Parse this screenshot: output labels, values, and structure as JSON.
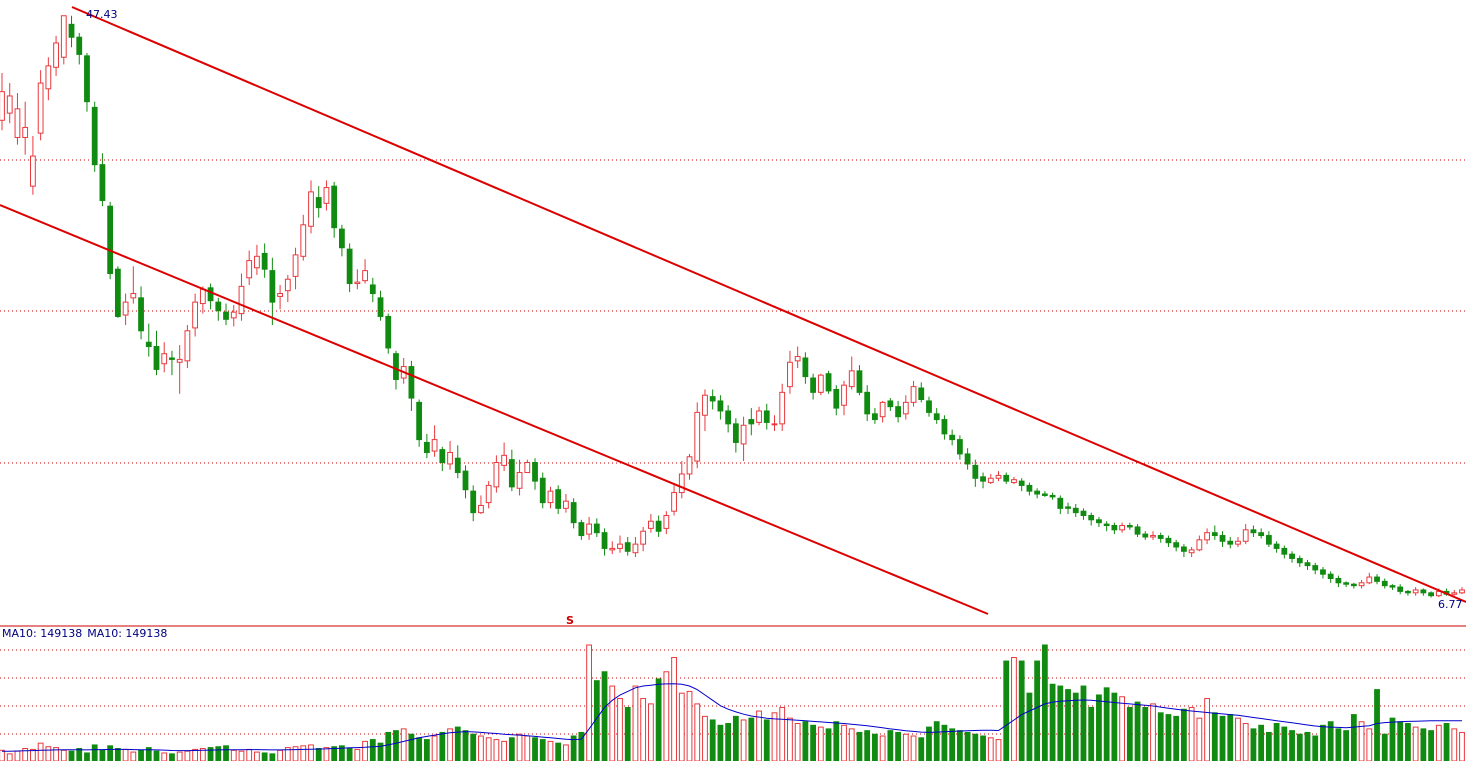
{
  "chart_data": {
    "type": "candlestick",
    "title": "",
    "high_label": "47.43",
    "low_label": "6.77",
    "marker_label": "S",
    "price_range": [
      5.9,
      48.5
    ],
    "volume_legend": {
      "ma10_a": "MA10: 149138",
      "ma10_b": "MA10: 149138"
    },
    "colors": {
      "up": "#e8393d",
      "down": "#108a10",
      "trendline": "#dd0000",
      "ma_line": "#0000cc",
      "grid": "#cc0000",
      "label": "#000080"
    },
    "candles": [
      [
        40.1,
        42.1,
        43.4,
        39.4
      ],
      [
        40.6,
        41.8,
        42.7,
        39.9
      ],
      [
        38.9,
        40.9,
        42.0,
        38.4
      ],
      [
        38.9,
        39.6,
        41.4,
        37.7
      ],
      [
        35.5,
        37.6,
        39.0,
        34.9
      ],
      [
        39.2,
        42.7,
        43.6,
        38.7
      ],
      [
        42.3,
        43.9,
        44.5,
        41.5
      ],
      [
        43.8,
        45.5,
        46.0,
        43.2
      ],
      [
        44.5,
        47.4,
        47.4,
        44.0
      ],
      [
        46.8,
        45.9,
        47.4,
        45.2
      ],
      [
        45.9,
        44.7,
        46.2,
        44.0
      ],
      [
        44.6,
        41.4,
        44.8,
        40.7
      ],
      [
        41.0,
        37.0,
        41.4,
        36.5
      ],
      [
        37.0,
        34.5,
        37.8,
        34.1
      ],
      [
        34.1,
        29.4,
        34.4,
        29.0
      ],
      [
        29.7,
        26.4,
        29.9,
        26.3
      ],
      [
        26.5,
        27.4,
        28.0,
        25.8
      ],
      [
        27.7,
        28.0,
        29.9,
        27.3
      ],
      [
        27.7,
        25.4,
        28.5,
        24.8
      ],
      [
        24.6,
        24.3,
        25.9,
        23.6
      ],
      [
        24.3,
        22.7,
        25.4,
        22.3
      ],
      [
        23.1,
        23.8,
        24.6,
        22.5
      ],
      [
        23.5,
        23.4,
        24.0,
        22.3
      ],
      [
        23.2,
        23.4,
        24.4,
        21.0
      ],
      [
        23.3,
        25.4,
        25.8,
        22.8
      ],
      [
        25.6,
        27.4,
        28.0,
        25.0
      ],
      [
        27.3,
        28.3,
        28.5,
        26.6
      ],
      [
        28.4,
        27.5,
        28.7,
        26.9
      ],
      [
        27.4,
        26.8,
        27.7,
        26.1
      ],
      [
        26.7,
        26.2,
        27.3,
        25.8
      ],
      [
        26.3,
        26.7,
        27.2,
        25.7
      ],
      [
        26.6,
        28.5,
        29.4,
        26.1
      ],
      [
        29.1,
        30.3,
        31.0,
        28.6
      ],
      [
        29.8,
        30.6,
        31.4,
        29.3
      ],
      [
        30.8,
        29.7,
        31.5,
        29.1
      ],
      [
        29.6,
        27.4,
        30.5,
        25.8
      ],
      [
        27.8,
        28.0,
        28.6,
        26.9
      ],
      [
        28.2,
        29.0,
        29.3,
        27.4
      ],
      [
        29.2,
        30.7,
        31.2,
        28.3
      ],
      [
        30.6,
        32.8,
        33.5,
        30.3
      ],
      [
        32.7,
        35.1,
        35.9,
        32.2
      ],
      [
        34.7,
        34.0,
        35.5,
        33.3
      ],
      [
        34.3,
        35.4,
        35.9,
        33.8
      ],
      [
        35.5,
        32.6,
        35.8,
        31.9
      ],
      [
        32.5,
        31.2,
        32.8,
        30.6
      ],
      [
        31.1,
        28.7,
        31.5,
        28.1
      ],
      [
        28.7,
        28.8,
        29.7,
        28.3
      ],
      [
        28.9,
        29.6,
        30.4,
        28.7
      ],
      [
        28.6,
        28.0,
        29.1,
        27.4
      ],
      [
        27.7,
        26.4,
        28.2,
        26.1
      ],
      [
        26.4,
        24.2,
        26.6,
        23.8
      ],
      [
        23.8,
        22.0,
        24.0,
        21.3
      ],
      [
        22.1,
        22.9,
        23.5,
        21.7
      ],
      [
        22.9,
        20.7,
        23.3,
        19.8
      ],
      [
        20.4,
        17.8,
        20.6,
        17.3
      ],
      [
        17.6,
        16.9,
        18.2,
        16.5
      ],
      [
        17.0,
        17.8,
        18.8,
        16.6
      ],
      [
        17.1,
        16.2,
        17.3,
        15.6
      ],
      [
        16.1,
        16.9,
        17.7,
        15.7
      ],
      [
        16.5,
        15.5,
        17.4,
        15.1
      ],
      [
        15.6,
        14.3,
        16.0,
        13.7
      ],
      [
        14.2,
        12.7,
        14.6,
        12.1
      ],
      [
        12.7,
        13.2,
        13.9,
        12.6
      ],
      [
        13.4,
        14.6,
        14.9,
        13.0
      ],
      [
        14.5,
        16.2,
        16.7,
        14.1
      ],
      [
        16.0,
        16.7,
        17.6,
        15.6
      ],
      [
        16.4,
        14.5,
        17.1,
        14.2
      ],
      [
        14.4,
        15.5,
        16.4,
        13.9
      ],
      [
        15.5,
        16.2,
        16.4,
        15.9
      ],
      [
        16.2,
        14.9,
        16.5,
        14.3
      ],
      [
        15.1,
        13.4,
        15.5,
        13.0
      ],
      [
        13.4,
        14.2,
        14.5,
        13.0
      ],
      [
        14.3,
        13.0,
        14.6,
        12.6
      ],
      [
        13.0,
        13.5,
        14.0,
        12.7
      ],
      [
        13.4,
        12.0,
        13.7,
        11.6
      ],
      [
        12.0,
        11.1,
        12.2,
        10.8
      ],
      [
        11.2,
        11.9,
        12.4,
        10.8
      ],
      [
        11.9,
        11.3,
        12.3,
        11.0
      ],
      [
        11.3,
        10.2,
        11.6,
        9.7
      ],
      [
        10.1,
        10.2,
        10.7,
        9.8
      ],
      [
        10.2,
        10.5,
        11.1,
        9.9
      ],
      [
        10.6,
        10.0,
        11.0,
        9.7
      ],
      [
        9.9,
        10.5,
        11.0,
        9.6
      ],
      [
        10.5,
        11.4,
        11.7,
        10.0
      ],
      [
        11.6,
        12.1,
        12.6,
        11.3
      ],
      [
        12.1,
        11.4,
        12.5,
        11.0
      ],
      [
        11.6,
        12.5,
        12.8,
        11.2
      ],
      [
        12.8,
        14.1,
        14.6,
        12.5
      ],
      [
        14.1,
        15.4,
        16.3,
        13.7
      ],
      [
        15.4,
        16.6,
        16.8,
        15.0
      ],
      [
        16.3,
        19.7,
        20.4,
        15.8
      ],
      [
        19.5,
        20.9,
        21.3,
        18.4
      ],
      [
        20.8,
        20.5,
        21.3,
        19.9
      ],
      [
        20.5,
        19.8,
        20.9,
        19.2
      ],
      [
        19.8,
        18.9,
        20.2,
        18.3
      ],
      [
        18.9,
        17.6,
        19.3,
        16.9
      ],
      [
        17.5,
        18.8,
        19.4,
        16.3
      ],
      [
        19.2,
        18.9,
        20.0,
        18.1
      ],
      [
        19.0,
        19.8,
        20.1,
        18.8
      ],
      [
        19.8,
        19.0,
        20.3,
        18.5
      ],
      [
        18.9,
        18.9,
        19.5,
        18.4
      ],
      [
        18.9,
        21.1,
        21.7,
        18.4
      ],
      [
        21.5,
        23.2,
        24.0,
        21.0
      ],
      [
        23.3,
        23.6,
        24.3,
        22.8
      ],
      [
        23.5,
        22.2,
        23.9,
        21.7
      ],
      [
        22.1,
        21.1,
        22.4,
        20.6
      ],
      [
        21.1,
        22.3,
        22.4,
        20.9
      ],
      [
        22.4,
        21.2,
        22.6,
        21.0
      ],
      [
        21.3,
        20.0,
        21.6,
        19.5
      ],
      [
        20.2,
        21.6,
        21.9,
        19.5
      ],
      [
        21.5,
        22.6,
        23.6,
        21.3
      ],
      [
        22.6,
        21.1,
        23.0,
        20.9
      ],
      [
        21.1,
        19.6,
        21.6,
        19.1
      ],
      [
        19.6,
        19.2,
        20.0,
        18.9
      ],
      [
        19.4,
        20.4,
        20.5,
        19.0
      ],
      [
        20.5,
        20.1,
        20.7,
        19.8
      ],
      [
        20.1,
        19.4,
        20.5,
        19.0
      ],
      [
        19.6,
        20.4,
        20.9,
        19.2
      ],
      [
        20.4,
        21.5,
        21.9,
        20.1
      ],
      [
        21.4,
        20.6,
        21.8,
        20.4
      ],
      [
        20.5,
        19.7,
        20.8,
        19.4
      ],
      [
        19.6,
        19.2,
        20.0,
        18.9
      ],
      [
        19.2,
        18.2,
        19.5,
        17.8
      ],
      [
        18.1,
        17.8,
        18.5,
        17.4
      ],
      [
        17.8,
        16.8,
        18.1,
        16.4
      ],
      [
        16.8,
        16.1,
        17.2,
        15.7
      ],
      [
        16.0,
        15.1,
        16.4,
        14.5
      ],
      [
        15.2,
        14.9,
        15.5,
        14.4
      ],
      [
        14.8,
        15.1,
        15.4,
        14.7
      ],
      [
        15.1,
        15.3,
        15.6,
        14.9
      ],
      [
        15.3,
        14.9,
        15.5,
        14.7
      ],
      [
        14.8,
        15.0,
        15.2,
        14.7
      ],
      [
        14.9,
        14.6,
        15.1,
        14.2
      ],
      [
        14.6,
        14.2,
        14.8,
        13.9
      ],
      [
        14.2,
        14.0,
        14.4,
        13.7
      ],
      [
        14.0,
        13.9,
        14.2,
        13.8
      ],
      [
        13.9,
        13.8,
        14.1,
        13.6
      ],
      [
        13.7,
        13.0,
        13.9,
        12.6
      ],
      [
        13.1,
        13.0,
        13.4,
        12.6
      ],
      [
        13.0,
        12.7,
        13.3,
        12.4
      ],
      [
        12.8,
        12.5,
        13.0,
        12.2
      ],
      [
        12.5,
        12.2,
        12.7,
        11.8
      ],
      [
        12.2,
        12.0,
        12.4,
        11.7
      ],
      [
        11.9,
        11.8,
        12.1,
        11.4
      ],
      [
        11.8,
        11.5,
        12.0,
        11.2
      ],
      [
        11.5,
        11.8,
        12.0,
        11.3
      ],
      [
        11.8,
        11.7,
        12.0,
        11.5
      ],
      [
        11.7,
        11.2,
        11.9,
        11.0
      ],
      [
        11.2,
        11.0,
        11.4,
        10.8
      ],
      [
        11.0,
        11.1,
        11.4,
        10.8
      ],
      [
        11.1,
        10.9,
        11.3,
        10.6
      ],
      [
        10.9,
        10.6,
        11.1,
        10.3
      ],
      [
        10.6,
        10.3,
        10.8,
        10.0
      ],
      [
        10.3,
        10.0,
        10.5,
        9.6
      ],
      [
        9.9,
        10.1,
        10.3,
        9.6
      ],
      [
        10.1,
        10.8,
        11.1,
        10.0
      ],
      [
        10.8,
        11.3,
        11.6,
        10.5
      ],
      [
        11.3,
        11.1,
        11.8,
        10.8
      ],
      [
        11.1,
        10.7,
        11.4,
        10.3
      ],
      [
        10.7,
        10.5,
        11.0,
        10.2
      ],
      [
        10.5,
        10.7,
        11.0,
        10.3
      ],
      [
        10.7,
        11.5,
        11.9,
        10.5
      ],
      [
        11.5,
        11.3,
        11.8,
        11.0
      ],
      [
        11.3,
        11.1,
        11.6,
        10.9
      ],
      [
        11.1,
        10.5,
        11.4,
        10.3
      ],
      [
        10.5,
        10.2,
        10.7,
        9.9
      ],
      [
        10.2,
        9.8,
        10.4,
        9.5
      ],
      [
        9.8,
        9.5,
        10.0,
        9.2
      ],
      [
        9.5,
        9.2,
        9.7,
        8.9
      ],
      [
        9.2,
        9.0,
        9.4,
        8.7
      ],
      [
        9.0,
        8.7,
        9.2,
        8.4
      ],
      [
        8.7,
        8.4,
        8.9,
        8.1
      ],
      [
        8.4,
        8.1,
        8.6,
        7.8
      ],
      [
        8.1,
        7.8,
        8.3,
        7.5
      ],
      [
        7.8,
        7.7,
        7.9,
        7.5
      ],
      [
        7.7,
        7.6,
        7.8,
        7.4
      ],
      [
        7.6,
        7.8,
        8.0,
        7.4
      ],
      [
        7.8,
        8.2,
        8.5,
        7.7
      ],
      [
        8.2,
        7.9,
        8.4,
        7.7
      ],
      [
        7.9,
        7.6,
        8.1,
        7.4
      ],
      [
        7.6,
        7.5,
        7.7,
        7.3
      ],
      [
        7.5,
        7.2,
        7.7,
        7.0
      ],
      [
        7.2,
        7.1,
        7.3,
        6.9
      ],
      [
        7.1,
        7.3,
        7.5,
        6.9
      ],
      [
        7.3,
        7.1,
        7.4,
        6.9
      ],
      [
        7.1,
        6.9,
        7.2,
        6.77
      ],
      [
        6.9,
        7.2,
        7.4,
        6.8
      ],
      [
        7.2,
        7.0,
        7.4,
        6.9
      ],
      [
        7.0,
        7.1,
        7.3,
        6.9
      ],
      [
        7.1,
        7.3,
        7.5,
        7.0
      ]
    ],
    "volume_max": 650000,
    "volumes": [
      60000,
      40000,
      55000,
      70000,
      65000,
      100000,
      80000,
      75000,
      60000,
      55000,
      70000,
      45000,
      90000,
      60000,
      85000,
      70000,
      65000,
      50000,
      60000,
      75000,
      55000,
      45000,
      40000,
      50000,
      55000,
      65000,
      70000,
      75000,
      80000,
      85000,
      60000,
      55000,
      65000,
      50000,
      45000,
      40000,
      60000,
      75000,
      80000,
      85000,
      90000,
      70000,
      75000,
      80000,
      85000,
      70000,
      65000,
      110000,
      120000,
      100000,
      160000,
      170000,
      180000,
      150000,
      130000,
      120000,
      140000,
      160000,
      180000,
      190000,
      170000,
      150000,
      140000,
      130000,
      120000,
      110000,
      130000,
      150000,
      140000,
      130000,
      120000,
      110000,
      100000,
      90000,
      140000,
      160000,
      650000,
      450000,
      500000,
      420000,
      350000,
      300000,
      420000,
      350000,
      320000,
      460000,
      500000,
      580000,
      380000,
      390000,
      320000,
      250000,
      230000,
      200000,
      210000,
      250000,
      230000,
      240000,
      280000,
      230000,
      270000,
      300000,
      240000,
      210000,
      220000,
      200000,
      190000,
      180000,
      220000,
      200000,
      180000,
      160000,
      170000,
      150000,
      140000,
      170000,
      160000,
      150000,
      140000,
      130000,
      190000,
      220000,
      200000,
      180000,
      170000,
      160000,
      150000,
      140000,
      130000,
      120000,
      560000,
      580000,
      560000,
      380000,
      560000,
      650000,
      430000,
      420000,
      400000,
      380000,
      420000,
      300000,
      370000,
      410000,
      380000,
      360000,
      300000,
      330000,
      300000,
      320000,
      270000,
      260000,
      250000,
      290000,
      300000,
      240000,
      350000,
      270000,
      250000,
      260000,
      240000,
      210000,
      180000,
      200000,
      160000,
      210000,
      190000,
      170000,
      150000,
      160000,
      140000,
      200000,
      220000,
      180000,
      170000,
      260000,
      220000,
      180000,
      400000,
      150000,
      240000,
      220000,
      210000,
      190000,
      180000,
      170000,
      200000,
      210000,
      180000,
      160000
    ],
    "ma10": [
      55000,
      55000,
      56000,
      57000,
      58000,
      60000,
      61000,
      62000,
      63000,
      63000,
      63000,
      62000,
      64000,
      64000,
      65000,
      65000,
      65000,
      64000,
      63000,
      63000,
      62000,
      61000,
      59000,
      58000,
      58000,
      59000,
      60000,
      61000,
      62000,
      63000,
      63000,
      63000,
      64000,
      64000,
      63000,
      62000,
      62000,
      63000,
      64000,
      65000,
      66000,
      67000,
      68000,
      70000,
      72000,
      74000,
      75000,
      77000,
      80000,
      82000,
      90000,
      100000,
      110000,
      120000,
      130000,
      138000,
      145000,
      152000,
      158000,
      162000,
      165000,
      163000,
      160000,
      157000,
      154000,
      150000,
      147000,
      145000,
      142000,
      138000,
      134000,
      130000,
      126000,
      122000,
      120000,
      122000,
      180000,
      240000,
      300000,
      340000,
      370000,
      390000,
      410000,
      420000,
      425000,
      430000,
      432000,
      433000,
      430000,
      420000,
      400000,
      370000,
      340000,
      310000,
      290000,
      275000,
      262000,
      252000,
      246000,
      240000,
      236000,
      234000,
      231000,
      228000,
      225000,
      222000,
      219000,
      216000,
      213000,
      210000,
      206000,
      202000,
      198000,
      192000,
      186000,
      180000,
      175000,
      170000,
      166000,
      162000,
      160000,
      162000,
      164000,
      166000,
      168000,
      170000,
      171000,
      172000,
      172000,
      171000,
      200000,
      230000,
      260000,
      280000,
      300000,
      320000,
      330000,
      335000,
      338000,
      340000,
      342000,
      340000,
      336000,
      332000,
      328000,
      324000,
      320000,
      316000,
      312000,
      308000,
      302000,
      296000,
      290000,
      284000,
      280000,
      276000,
      272000,
      268000,
      264000,
      260000,
      256000,
      250000,
      244000,
      238000,
      232000,
      226000,
      220000,
      214000,
      208000,
      202000,
      196000,
      192000,
      190000,
      188000,
      186000,
      190000,
      194000,
      198000,
      210000,
      215000,
      218000,
      220000,
      222000,
      223000,
      224000,
      225000,
      226000,
      226000,
      226000,
      225000
    ]
  }
}
